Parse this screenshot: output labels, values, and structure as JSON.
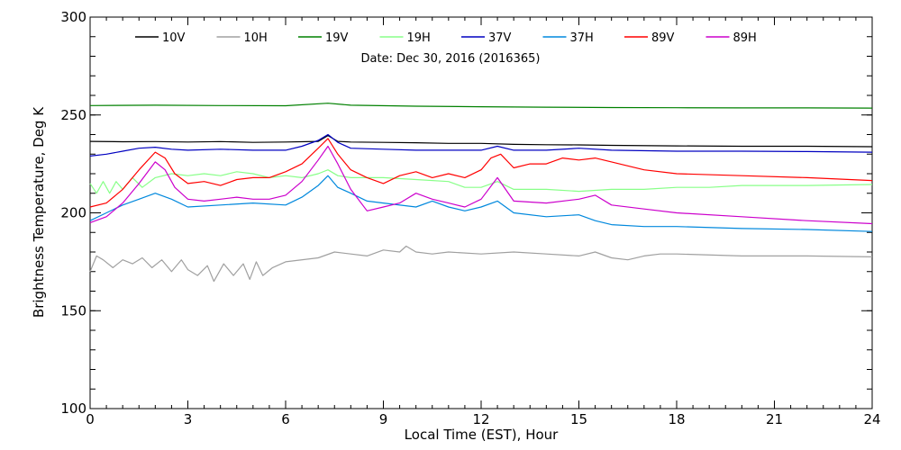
{
  "chart_data": {
    "type": "line",
    "xlabel": "Local Time (EST), Hour",
    "ylabel": "Brightness Temperature, Deg K",
    "annotation": "Date: Dec 30, 2016 (2016365)",
    "xlim": [
      0,
      24
    ],
    "ylim": [
      100,
      300
    ],
    "x_ticks": [
      0,
      3,
      6,
      9,
      12,
      15,
      18,
      21,
      24
    ],
    "y_ticks": [
      100,
      150,
      200,
      250,
      300
    ],
    "x_minor_step": 0.5,
    "y_minor_step": 10,
    "grid": false,
    "legend_position": "top",
    "series": [
      {
        "name": "10V",
        "color": "#000000",
        "points": [
          [
            0,
            236.5
          ],
          [
            1,
            236.3
          ],
          [
            2,
            236.4
          ],
          [
            3,
            236.2
          ],
          [
            4,
            236.4
          ],
          [
            5,
            236.0
          ],
          [
            6,
            236.2
          ],
          [
            7,
            236.5
          ],
          [
            7.3,
            239.5
          ],
          [
            7.6,
            236.5
          ],
          [
            8,
            236.2
          ],
          [
            9,
            236.0
          ],
          [
            10,
            235.8
          ],
          [
            11,
            235.5
          ],
          [
            12,
            235.5
          ],
          [
            13,
            235.0
          ],
          [
            14,
            234.8
          ],
          [
            15,
            234.7
          ],
          [
            16,
            234.5
          ],
          [
            18,
            234.2
          ],
          [
            20,
            234.0
          ],
          [
            22,
            234.0
          ],
          [
            24,
            233.8
          ]
        ]
      },
      {
        "name": "10H",
        "color": "#a0a0a0",
        "points": [
          [
            0,
            170
          ],
          [
            0.2,
            178
          ],
          [
            0.4,
            176
          ],
          [
            0.7,
            172
          ],
          [
            1,
            176
          ],
          [
            1.3,
            174
          ],
          [
            1.6,
            177
          ],
          [
            1.9,
            172
          ],
          [
            2.2,
            176
          ],
          [
            2.5,
            170
          ],
          [
            2.8,
            176
          ],
          [
            3.0,
            171
          ],
          [
            3.3,
            168
          ],
          [
            3.6,
            173
          ],
          [
            3.8,
            165
          ],
          [
            4.1,
            174
          ],
          [
            4.4,
            168
          ],
          [
            4.7,
            174
          ],
          [
            4.9,
            166
          ],
          [
            5.1,
            175
          ],
          [
            5.3,
            168
          ],
          [
            5.6,
            172
          ],
          [
            6,
            175
          ],
          [
            7,
            177
          ],
          [
            7.5,
            180
          ],
          [
            8,
            179
          ],
          [
            8.5,
            178
          ],
          [
            9,
            181
          ],
          [
            9.5,
            180
          ],
          [
            9.7,
            183
          ],
          [
            10,
            180
          ],
          [
            10.5,
            179
          ],
          [
            11,
            180
          ],
          [
            12,
            179
          ],
          [
            13,
            180
          ],
          [
            14,
            179
          ],
          [
            15,
            178
          ],
          [
            15.5,
            180
          ],
          [
            16,
            177
          ],
          [
            16.5,
            176
          ],
          [
            17,
            178
          ],
          [
            17.5,
            179
          ],
          [
            18,
            179
          ],
          [
            20,
            178
          ],
          [
            22,
            178
          ],
          [
            24,
            177.5
          ]
        ]
      },
      {
        "name": "19V",
        "color": "#008000",
        "points": [
          [
            0,
            254.8
          ],
          [
            2,
            255.0
          ],
          [
            4,
            254.8
          ],
          [
            6,
            254.7
          ],
          [
            7.3,
            256.0
          ],
          [
            8,
            255.0
          ],
          [
            10,
            254.5
          ],
          [
            12,
            254.2
          ],
          [
            14,
            254.0
          ],
          [
            16,
            253.8
          ],
          [
            18,
            253.7
          ],
          [
            20,
            253.6
          ],
          [
            22,
            253.6
          ],
          [
            24,
            253.5
          ]
        ]
      },
      {
        "name": "19H",
        "color": "#88ff88",
        "points": [
          [
            0,
            215
          ],
          [
            0.2,
            210
          ],
          [
            0.4,
            216
          ],
          [
            0.6,
            210
          ],
          [
            0.8,
            216
          ],
          [
            1.0,
            212
          ],
          [
            1.3,
            218
          ],
          [
            1.6,
            213
          ],
          [
            2,
            218
          ],
          [
            2.5,
            220
          ],
          [
            3,
            219
          ],
          [
            3.5,
            220
          ],
          [
            4,
            219
          ],
          [
            4.5,
            221
          ],
          [
            5,
            220
          ],
          [
            5.5,
            218
          ],
          [
            6,
            219
          ],
          [
            6.5,
            218
          ],
          [
            7,
            220
          ],
          [
            7.3,
            222
          ],
          [
            7.6,
            219
          ],
          [
            8,
            218
          ],
          [
            9,
            218
          ],
          [
            10,
            217
          ],
          [
            11,
            216
          ],
          [
            11.5,
            213
          ],
          [
            12,
            213
          ],
          [
            12.5,
            216
          ],
          [
            13,
            212
          ],
          [
            14,
            212
          ],
          [
            15,
            211
          ],
          [
            16,
            212
          ],
          [
            17,
            212
          ],
          [
            18,
            213
          ],
          [
            19,
            213
          ],
          [
            20,
            214
          ],
          [
            22,
            214
          ],
          [
            24,
            214.5
          ]
        ]
      },
      {
        "name": "37V",
        "color": "#0000c0",
        "points": [
          [
            0,
            229
          ],
          [
            0.5,
            230
          ],
          [
            1,
            231.5
          ],
          [
            1.5,
            233
          ],
          [
            2,
            233.5
          ],
          [
            2.5,
            232.5
          ],
          [
            3,
            232
          ],
          [
            4,
            232.5
          ],
          [
            5,
            232
          ],
          [
            6,
            232
          ],
          [
            6.5,
            234
          ],
          [
            7,
            237
          ],
          [
            7.3,
            240
          ],
          [
            7.6,
            236
          ],
          [
            8,
            233
          ],
          [
            9,
            232.5
          ],
          [
            10,
            232
          ],
          [
            11,
            232
          ],
          [
            12,
            232
          ],
          [
            12.5,
            234
          ],
          [
            13,
            232
          ],
          [
            14,
            232
          ],
          [
            15,
            233
          ],
          [
            16,
            232
          ],
          [
            18,
            231.5
          ],
          [
            20,
            231.5
          ],
          [
            22,
            231.3
          ],
          [
            24,
            231.0
          ]
        ]
      },
      {
        "name": "37H",
        "color": "#0088dd",
        "points": [
          [
            0,
            196
          ],
          [
            0.5,
            200
          ],
          [
            1,
            204
          ],
          [
            1.5,
            207
          ],
          [
            2,
            210
          ],
          [
            2.5,
            207
          ],
          [
            3,
            203
          ],
          [
            4,
            204
          ],
          [
            5,
            205
          ],
          [
            6,
            204
          ],
          [
            6.5,
            208
          ],
          [
            7,
            214
          ],
          [
            7.3,
            219
          ],
          [
            7.6,
            213
          ],
          [
            8,
            210
          ],
          [
            8.5,
            206
          ],
          [
            9,
            205
          ],
          [
            10,
            203
          ],
          [
            10.5,
            206
          ],
          [
            11,
            203
          ],
          [
            11.5,
            201
          ],
          [
            12,
            203
          ],
          [
            12.5,
            206
          ],
          [
            13,
            200
          ],
          [
            14,
            198
          ],
          [
            15,
            199
          ],
          [
            15.5,
            196
          ],
          [
            16,
            194
          ],
          [
            17,
            193
          ],
          [
            18,
            193
          ],
          [
            20,
            192
          ],
          [
            22,
            191.5
          ],
          [
            24,
            190.5
          ]
        ]
      },
      {
        "name": "89V",
        "color": "#ff0000",
        "points": [
          [
            0,
            203
          ],
          [
            0.5,
            205
          ],
          [
            1,
            212
          ],
          [
            1.5,
            222
          ],
          [
            2,
            231
          ],
          [
            2.3,
            228
          ],
          [
            2.6,
            220
          ],
          [
            3,
            215
          ],
          [
            3.5,
            216
          ],
          [
            4,
            214
          ],
          [
            4.5,
            217
          ],
          [
            5,
            218
          ],
          [
            5.5,
            218
          ],
          [
            6,
            221
          ],
          [
            6.5,
            225
          ],
          [
            7,
            233
          ],
          [
            7.3,
            238
          ],
          [
            7.6,
            230
          ],
          [
            8,
            222
          ],
          [
            8.5,
            218
          ],
          [
            9,
            215
          ],
          [
            9.5,
            219
          ],
          [
            10,
            221
          ],
          [
            10.5,
            218
          ],
          [
            11,
            220
          ],
          [
            11.5,
            218
          ],
          [
            12,
            222
          ],
          [
            12.3,
            228
          ],
          [
            12.6,
            230
          ],
          [
            13,
            223
          ],
          [
            13.5,
            225
          ],
          [
            14,
            225
          ],
          [
            14.5,
            228
          ],
          [
            15,
            227
          ],
          [
            15.5,
            228
          ],
          [
            16,
            226
          ],
          [
            17,
            222
          ],
          [
            18,
            220
          ],
          [
            20,
            219
          ],
          [
            22,
            218
          ],
          [
            24,
            216.5
          ]
        ]
      },
      {
        "name": "89H",
        "color": "#cc00cc",
        "points": [
          [
            0,
            195
          ],
          [
            0.5,
            198
          ],
          [
            1,
            205
          ],
          [
            1.5,
            215
          ],
          [
            2,
            226
          ],
          [
            2.3,
            222
          ],
          [
            2.6,
            213
          ],
          [
            3,
            207
          ],
          [
            3.5,
            206
          ],
          [
            4,
            207
          ],
          [
            4.5,
            208
          ],
          [
            5,
            207
          ],
          [
            5.5,
            207
          ],
          [
            6,
            209
          ],
          [
            6.5,
            216
          ],
          [
            7,
            227
          ],
          [
            7.3,
            234
          ],
          [
            7.6,
            225
          ],
          [
            8,
            212
          ],
          [
            8.5,
            201
          ],
          [
            9,
            203
          ],
          [
            9.5,
            205
          ],
          [
            10,
            210
          ],
          [
            10.5,
            207
          ],
          [
            11,
            205
          ],
          [
            11.5,
            203
          ],
          [
            12,
            207
          ],
          [
            12.5,
            218
          ],
          [
            13,
            206
          ],
          [
            14,
            205
          ],
          [
            15,
            207
          ],
          [
            15.5,
            209
          ],
          [
            16,
            204
          ],
          [
            17,
            202
          ],
          [
            18,
            200
          ],
          [
            20,
            198
          ],
          [
            22,
            196
          ],
          [
            24,
            194.5
          ]
        ]
      }
    ]
  }
}
